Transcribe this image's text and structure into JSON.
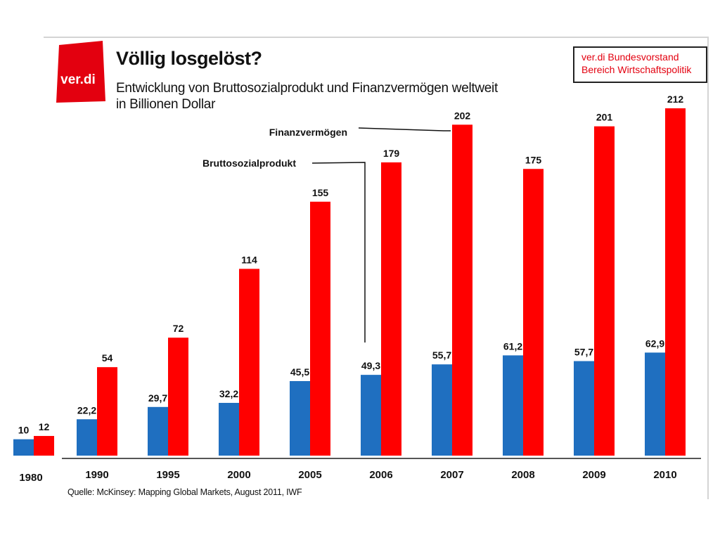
{
  "header": {
    "title": "Völlig losgelöst?",
    "subtitle_line1": "Entwicklung von Bruttosozialprodukt und Finanzvermögen weltweit",
    "subtitle_line2": "in Billionen Dollar",
    "logo_text": "ver.di",
    "logo_color": "#e3000f"
  },
  "org_box": {
    "line1": "ver.di Bundesvorstand",
    "line2": "Bereich Wirtschaftspolitik",
    "color": "#e3000f"
  },
  "source": "Quelle: McKinsey: Mapping Global Markets, August 2011, IWF",
  "chart_data": {
    "type": "bar",
    "categories": [
      "1980",
      "1990",
      "1995",
      "2000",
      "2005",
      "2006",
      "2007",
      "2008",
      "2009",
      "2010"
    ],
    "series": [
      {
        "name": "Bruttosozialprodukt",
        "color": "#1f6fc0",
        "values": [
          10,
          22.2,
          29.7,
          32.2,
          45.5,
          49.3,
          55.7,
          61.2,
          57.7,
          62.9
        ],
        "labels": [
          "10",
          "22,2",
          "29,7",
          "32,2",
          "45,5",
          "49,3",
          "55,7",
          "61,2",
          "57,7",
          "62,9"
        ]
      },
      {
        "name": "Finanzvermögen",
        "color": "#ff0000",
        "values": [
          12,
          54,
          72,
          114,
          155,
          179,
          202,
          175,
          201,
          212
        ],
        "labels": [
          "12",
          "54",
          "72",
          "114",
          "155",
          "179",
          "202",
          "175",
          "201",
          "212"
        ]
      }
    ],
    "annotations": [
      {
        "text": "Finanzvermögen",
        "category": "2007",
        "series": "Finanzvermögen"
      },
      {
        "text": "Bruttosozialprodukt",
        "category": "2006",
        "series": "Bruttosozialprodukt"
      }
    ],
    "ylim": [
      0,
      212
    ],
    "grid": false,
    "legend": "none"
  }
}
